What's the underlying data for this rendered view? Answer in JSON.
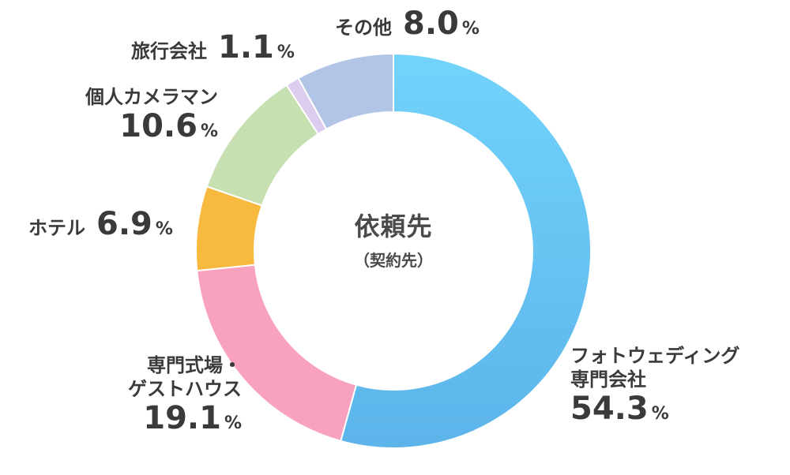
{
  "chart_data": {
    "type": "pie",
    "title": "依頼先",
    "subtitle": "（契約先）",
    "categories": [
      "フォトウェディング専門会社",
      "専門式場・ゲストハウス",
      "ホテル",
      "個人カメラマン",
      "旅行会社",
      "その他"
    ],
    "values": [
      54.3,
      19.1,
      6.9,
      10.6,
      1.1,
      8.0
    ],
    "value_labels": [
      "54.3",
      "19.1",
      "6.9",
      "10.6",
      "1.1",
      "8.0"
    ],
    "unit": "%",
    "colors": [
      "#6cc9f4",
      "#f8a2bf",
      "#f8b93f",
      "#c6e0b2",
      "#dcccf0",
      "#b3c5e6"
    ],
    "label_lines": {
      "photo_wedding": [
        "フォトウェディング",
        "専門会社"
      ],
      "venue": [
        "専門式場・",
        "ゲストハウス"
      ]
    }
  }
}
